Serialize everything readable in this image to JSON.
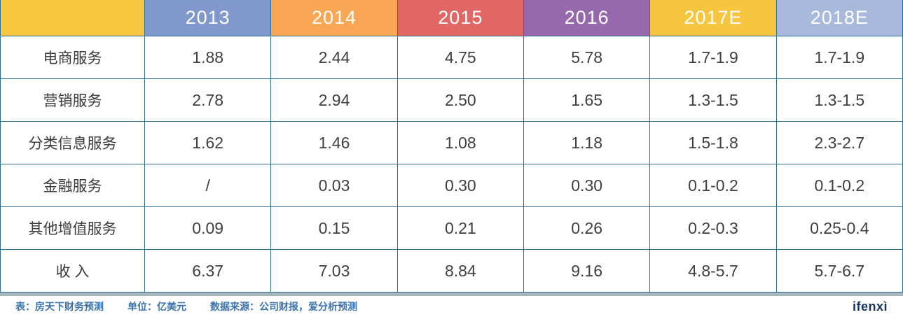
{
  "chart_data": {
    "type": "table",
    "columns": [
      "",
      "2013",
      "2014",
      "2015",
      "2016",
      "2017E",
      "2018E"
    ],
    "header_colors": [
      "#F7C73F",
      "#8098CC",
      "#F9A755",
      "#E16765",
      "#9569AC",
      "#F6C640",
      "#A9B9DB"
    ],
    "rows": [
      {
        "label": "电商服务",
        "values": [
          "1.88",
          "2.44",
          "4.75",
          "5.78",
          "1.7-1.9",
          "1.7-1.9"
        ]
      },
      {
        "label": "营销服务",
        "values": [
          "2.78",
          "2.94",
          "2.50",
          "1.65",
          "1.3-1.5",
          "1.3-1.5"
        ]
      },
      {
        "label": "分类信息服务",
        "values": [
          "1.62",
          "1.46",
          "1.08",
          "1.18",
          "1.5-1.8",
          "2.3-2.7"
        ]
      },
      {
        "label": "金融服务",
        "values": [
          "/",
          "0.03",
          "0.30",
          "0.30",
          "0.1-0.2",
          "0.1-0.2"
        ]
      },
      {
        "label": "其他增值服务",
        "values": [
          "0.09",
          "0.15",
          "0.21",
          "0.26",
          "0.2-0.3",
          "0.25-0.4"
        ]
      },
      {
        "label": "收 入",
        "values": [
          "6.37",
          "7.03",
          "8.84",
          "9.16",
          "4.8-5.7",
          "5.7-6.7"
        ]
      }
    ],
    "unit": "亿美元"
  },
  "footer": {
    "note": "表：房天下财务预测",
    "unit": "单位：亿美元",
    "source": "数据来源：公司财报，爱分析预测",
    "logo": "ifenxì"
  },
  "colors": {
    "grid_line": "#2B6E96",
    "bottom_bar": "#A9B4BC",
    "footer_text": "#3C74AE",
    "logo_text": "#16325C",
    "cell_text": "#3F3F3F"
  }
}
